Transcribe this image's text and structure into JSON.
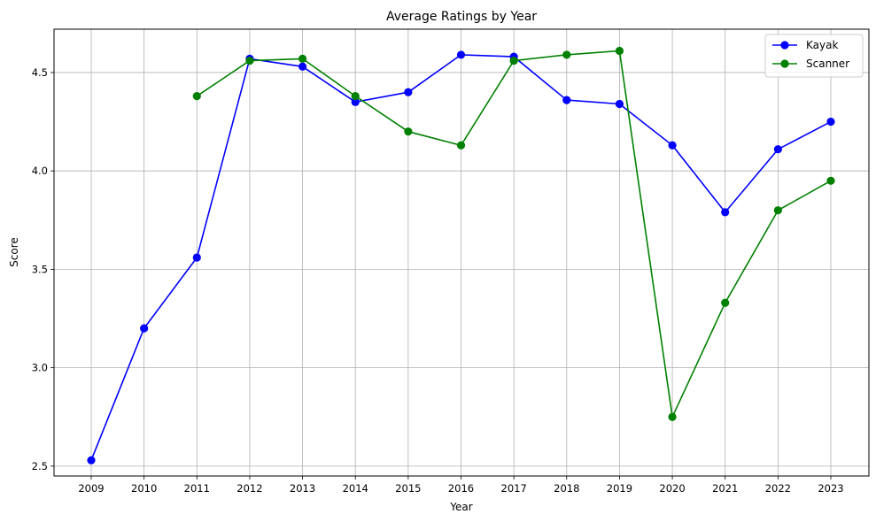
{
  "chart_data": {
    "type": "line",
    "title": "Average Ratings by Year",
    "xlabel": "Year",
    "ylabel": "Score",
    "categories": [
      "2009",
      "2010",
      "2011",
      "2012",
      "2013",
      "2014",
      "2015",
      "2016",
      "2017",
      "2018",
      "2019",
      "2020",
      "2021",
      "2022",
      "2023"
    ],
    "ylim": [
      2.45,
      4.72
    ],
    "yticks": [
      "2.5",
      "3.0",
      "3.5",
      "4.0",
      "4.5"
    ],
    "grid": true,
    "legend_position": "top-right",
    "series": [
      {
        "name": "Kayak",
        "color": "#0000ff",
        "marker": "circle",
        "values": [
          2.53,
          3.2,
          3.56,
          4.57,
          4.53,
          4.35,
          4.4,
          4.59,
          4.58,
          4.36,
          4.34,
          4.13,
          3.79,
          4.11,
          4.25
        ]
      },
      {
        "name": "Scanner",
        "color": "#008000",
        "marker": "circle",
        "values": [
          null,
          null,
          4.38,
          4.56,
          4.57,
          4.38,
          4.2,
          4.13,
          4.56,
          4.59,
          4.61,
          2.75,
          3.33,
          3.8,
          3.95
        ]
      }
    ]
  }
}
